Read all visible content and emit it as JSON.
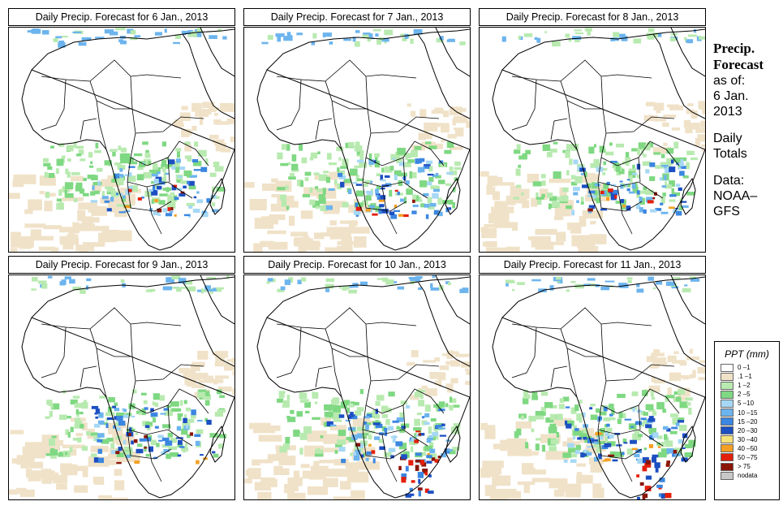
{
  "panels": [
    {
      "title": "Daily Precip. Forecast for  6 Jan., 2013"
    },
    {
      "title": "Daily Precip. Forecast for  7 Jan., 2013"
    },
    {
      "title": "Daily Precip. Forecast for  8 Jan., 2013"
    },
    {
      "title": "Daily Precip. Forecast for  9 Jan., 2013"
    },
    {
      "title": "Daily Precip. Forecast for  10 Jan., 2013"
    },
    {
      "title": "Daily Precip. Forecast for  11 Jan., 2013"
    }
  ],
  "info": {
    "heading1": "Precip.",
    "heading2": "Forecast",
    "asof": "as of:",
    "date1": "6 Jan.",
    "date2": "2013",
    "period1": "Daily",
    "period2": "Totals",
    "data_label": "Data:",
    "source1": "NOAA–",
    "source2": "GFS"
  },
  "legend": {
    "title": "PPT (mm)",
    "items": [
      {
        "label": "0 –1",
        "color": "#ffffff"
      },
      {
        "label": ".1 –1",
        "color": "#f0e2c8"
      },
      {
        "label": "1 –2",
        "color": "#b8eab0"
      },
      {
        "label": "2 –5",
        "color": "#7fd882"
      },
      {
        "label": "5 –10",
        "color": "#a6d8f5"
      },
      {
        "label": "10 –15",
        "color": "#6cb4ee"
      },
      {
        "label": "15 –20",
        "color": "#3b86e0"
      },
      {
        "label": "20 –30",
        "color": "#1c4fc2"
      },
      {
        "label": "30 –40",
        "color": "#f5e27a"
      },
      {
        "label": "40 –50",
        "color": "#f5a024"
      },
      {
        "label": "50 –75",
        "color": "#e3200c"
      },
      {
        "label": "> 75",
        "color": "#8a1608"
      },
      {
        "label": "nodata",
        "color": "#c8c8c8"
      }
    ]
  }
}
